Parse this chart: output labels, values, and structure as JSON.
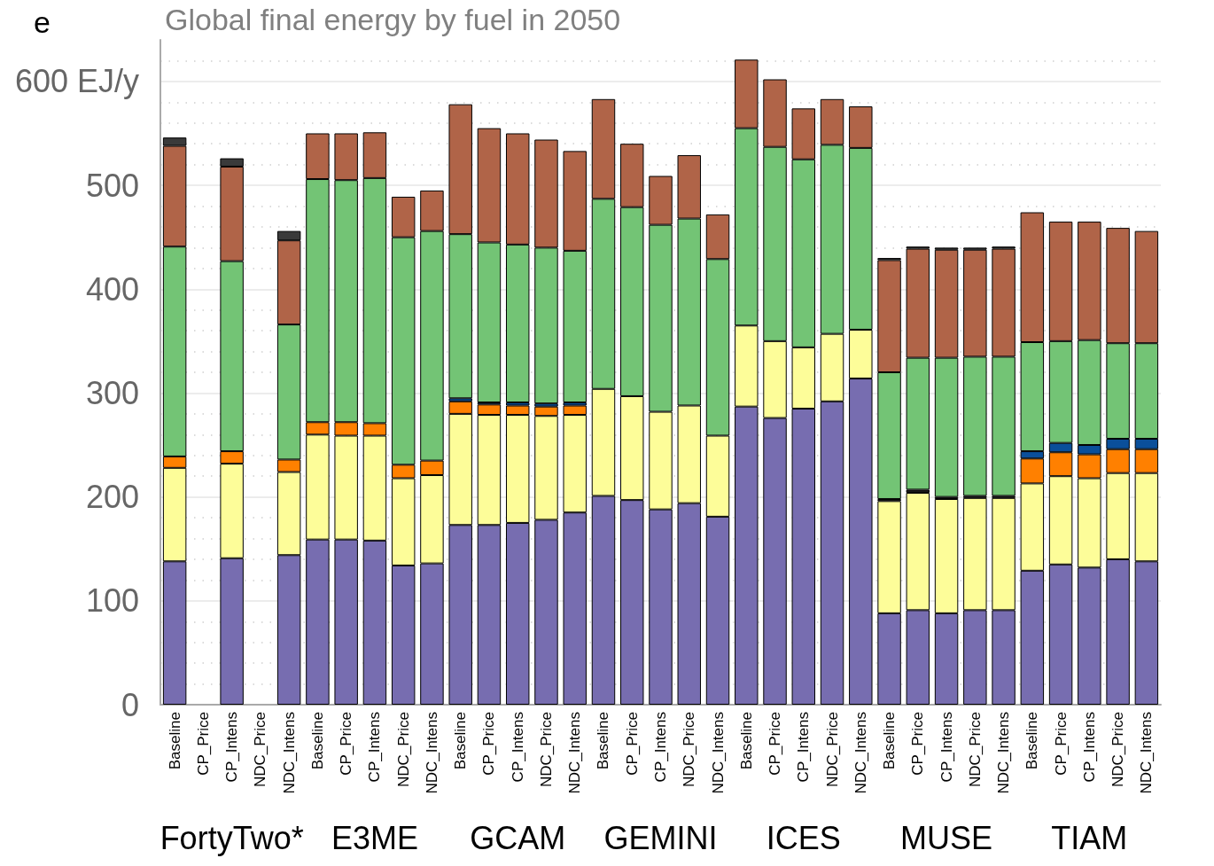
{
  "chart_data": {
    "type": "bar",
    "title": "Global final energy by fuel in 2050",
    "stacked": true,
    "categories": [
      "Baseline",
      "CP_Price",
      "CP_Intens",
      "NDC_Price",
      "NDC_Intens",
      "Baseline",
      "CP_Price",
      "CP_Intens",
      "NDC_Price",
      "NDC_Intens",
      "Baseline",
      "CP_Price",
      "CP_Intens",
      "NDC_Price",
      "NDC_Intens",
      "Baseline",
      "CP_Price",
      "CP_Intens",
      "NDC_Price",
      "NDC_Intens",
      "Baseline",
      "CP_Price",
      "CP_Intens",
      "NDC_Price",
      "NDC_Intens",
      "Baseline",
      "CP_Price",
      "CP_Intens",
      "NDC_Price",
      "NDC_Intens",
      "Baseline",
      "CP_Price",
      "CP_Intens",
      "NDC_Price",
      "NDC_Intens"
    ],
    "series": [
      {
        "color": "#776db0",
        "values": [
          138,
          null,
          141,
          null,
          144,
          159,
          159,
          158,
          134,
          136,
          173,
          173,
          175,
          178,
          185,
          201,
          197,
          188,
          194,
          181,
          287,
          276,
          285,
          292,
          314,
          88,
          91,
          88,
          91,
          91,
          129,
          135,
          132,
          140,
          138
        ]
      },
      {
        "color": "#fdfd99",
        "values": [
          90,
          null,
          91,
          null,
          80,
          101,
          100,
          101,
          84,
          85,
          107,
          106,
          104,
          100,
          94,
          103,
          100,
          94,
          94,
          78,
          78,
          74,
          59,
          65,
          47,
          108,
          113,
          110,
          108,
          108,
          84,
          85,
          86,
          83,
          85
        ]
      },
      {
        "color": "#ff8000",
        "values": [
          11,
          null,
          12,
          null,
          12,
          12,
          13,
          12,
          13,
          14,
          12,
          10,
          9,
          9,
          9,
          null,
          null,
          null,
          null,
          null,
          null,
          null,
          null,
          null,
          null,
          null,
          null,
          null,
          null,
          null,
          24,
          23,
          23,
          23,
          23
        ]
      },
      {
        "color": "#0a4f9a",
        "values": [
          null,
          null,
          null,
          null,
          null,
          null,
          null,
          null,
          null,
          null,
          3,
          2,
          3,
          3,
          3,
          null,
          null,
          null,
          null,
          null,
          null,
          null,
          null,
          null,
          null,
          null,
          null,
          null,
          null,
          null,
          7,
          9,
          9,
          10,
          10
        ]
      },
      {
        "color": "#1a1a1a",
        "values": [
          null,
          null,
          null,
          null,
          null,
          null,
          null,
          null,
          null,
          null,
          null,
          null,
          null,
          null,
          null,
          null,
          null,
          null,
          null,
          null,
          null,
          null,
          null,
          null,
          null,
          2,
          3,
          2,
          2,
          2,
          null,
          null,
          null,
          null,
          null
        ]
      },
      {
        "color": "#73c475",
        "values": [
          202,
          null,
          183,
          null,
          130,
          234,
          233,
          236,
          219,
          221,
          158,
          154,
          152,
          150,
          146,
          183,
          182,
          180,
          180,
          170,
          190,
          187,
          181,
          182,
          175,
          122,
          127,
          134,
          134,
          134,
          105,
          98,
          101,
          92,
          92
        ]
      },
      {
        "color": "#b06448",
        "values": [
          97,
          null,
          91,
          null,
          81,
          44,
          45,
          44,
          39,
          39,
          125,
          110,
          107,
          104,
          96,
          96,
          61,
          47,
          61,
          43,
          66,
          65,
          49,
          44,
          40,
          108,
          105,
          104,
          103,
          104,
          125,
          115,
          114,
          111,
          108
        ]
      },
      {
        "color": "#3a3a3a",
        "values": [
          8,
          null,
          8,
          null,
          9,
          null,
          null,
          null,
          null,
          null,
          null,
          null,
          null,
          null,
          null,
          null,
          null,
          null,
          null,
          null,
          null,
          null,
          null,
          null,
          null,
          2,
          2,
          2,
          2,
          2,
          null,
          null,
          null,
          null,
          null
        ]
      }
    ],
    "ylim": [
      0,
      640
    ],
    "yticks": [
      0,
      100,
      200,
      300,
      400,
      500,
      {
        "value": 600,
        "label": "600 EJ/y"
      }
    ],
    "grid": "y",
    "annotations": [
      "e",
      "FortyTwo*",
      "E3ME",
      "GCAM",
      "GEMINI",
      "ICES",
      "MUSE",
      "TIAM"
    ]
  }
}
